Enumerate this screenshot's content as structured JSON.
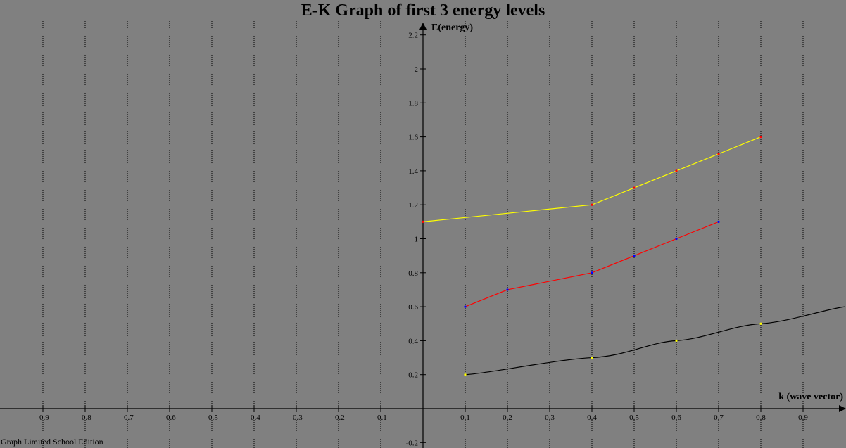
{
  "chart_data": {
    "type": "line",
    "title": "E-K Graph of first 3 energy levels",
    "xlabel": "k (wave vector)",
    "ylabel": "E(energy)",
    "xlim": [
      -1.0,
      1.0
    ],
    "ylim": [
      -0.2,
      2.2
    ],
    "x_ticks": [
      -0.9,
      -0.8,
      -0.7,
      -0.6,
      -0.5,
      -0.4,
      -0.3,
      -0.2,
      -0.1,
      0.1,
      0.2,
      0.3,
      0.4,
      0.5,
      0.6,
      0.7,
      0.8,
      0.9
    ],
    "x_tick_labels": [
      "-0.9",
      "-0.8",
      "-0.7",
      "-0.6",
      "-0.5",
      "-0.4",
      "-0.3",
      "-0.2",
      "-0.1",
      "0.1",
      "0.2",
      "0.3",
      "0.4",
      "0.5",
      "0.6",
      "0.7",
      "0.8",
      "0.9"
    ],
    "y_ticks": [
      -0.2,
      0.2,
      0.4,
      0.6,
      0.8,
      1.0,
      1.2,
      1.4,
      1.6,
      1.8,
      2.0,
      2.2
    ],
    "y_tick_labels": [
      "-0.2",
      "0.2",
      "0.4",
      "0.6",
      "0.8",
      "1",
      "1.2",
      "1.4",
      "1.6",
      "1.8",
      "2",
      "2.2"
    ],
    "grid": "vertical dotted",
    "legend": "none",
    "series": [
      {
        "style": "smooth",
        "color": "#000000",
        "marker_color": "#ffff00",
        "x": [
          0.1,
          0.4,
          0.6,
          0.8,
          1.0
        ],
        "y": [
          0.2,
          0.3,
          0.4,
          0.5,
          0.6
        ]
      },
      {
        "style": "straight",
        "color": "#ff0000",
        "marker_color": "#0000ff",
        "x": [
          0.1,
          0.2,
          0.4,
          0.5,
          0.6,
          0.7
        ],
        "y": [
          0.6,
          0.7,
          0.8,
          0.9,
          1.0,
          1.1
        ]
      },
      {
        "style": "straight",
        "color": "#ffff00",
        "marker_color": "#ff0000",
        "x": [
          0.0,
          0.4,
          0.5,
          0.6,
          0.7,
          0.8
        ],
        "y": [
          1.1,
          1.2,
          1.3,
          1.4,
          1.5,
          1.6
        ]
      }
    ]
  },
  "footer": "Graph Limited School Edition"
}
